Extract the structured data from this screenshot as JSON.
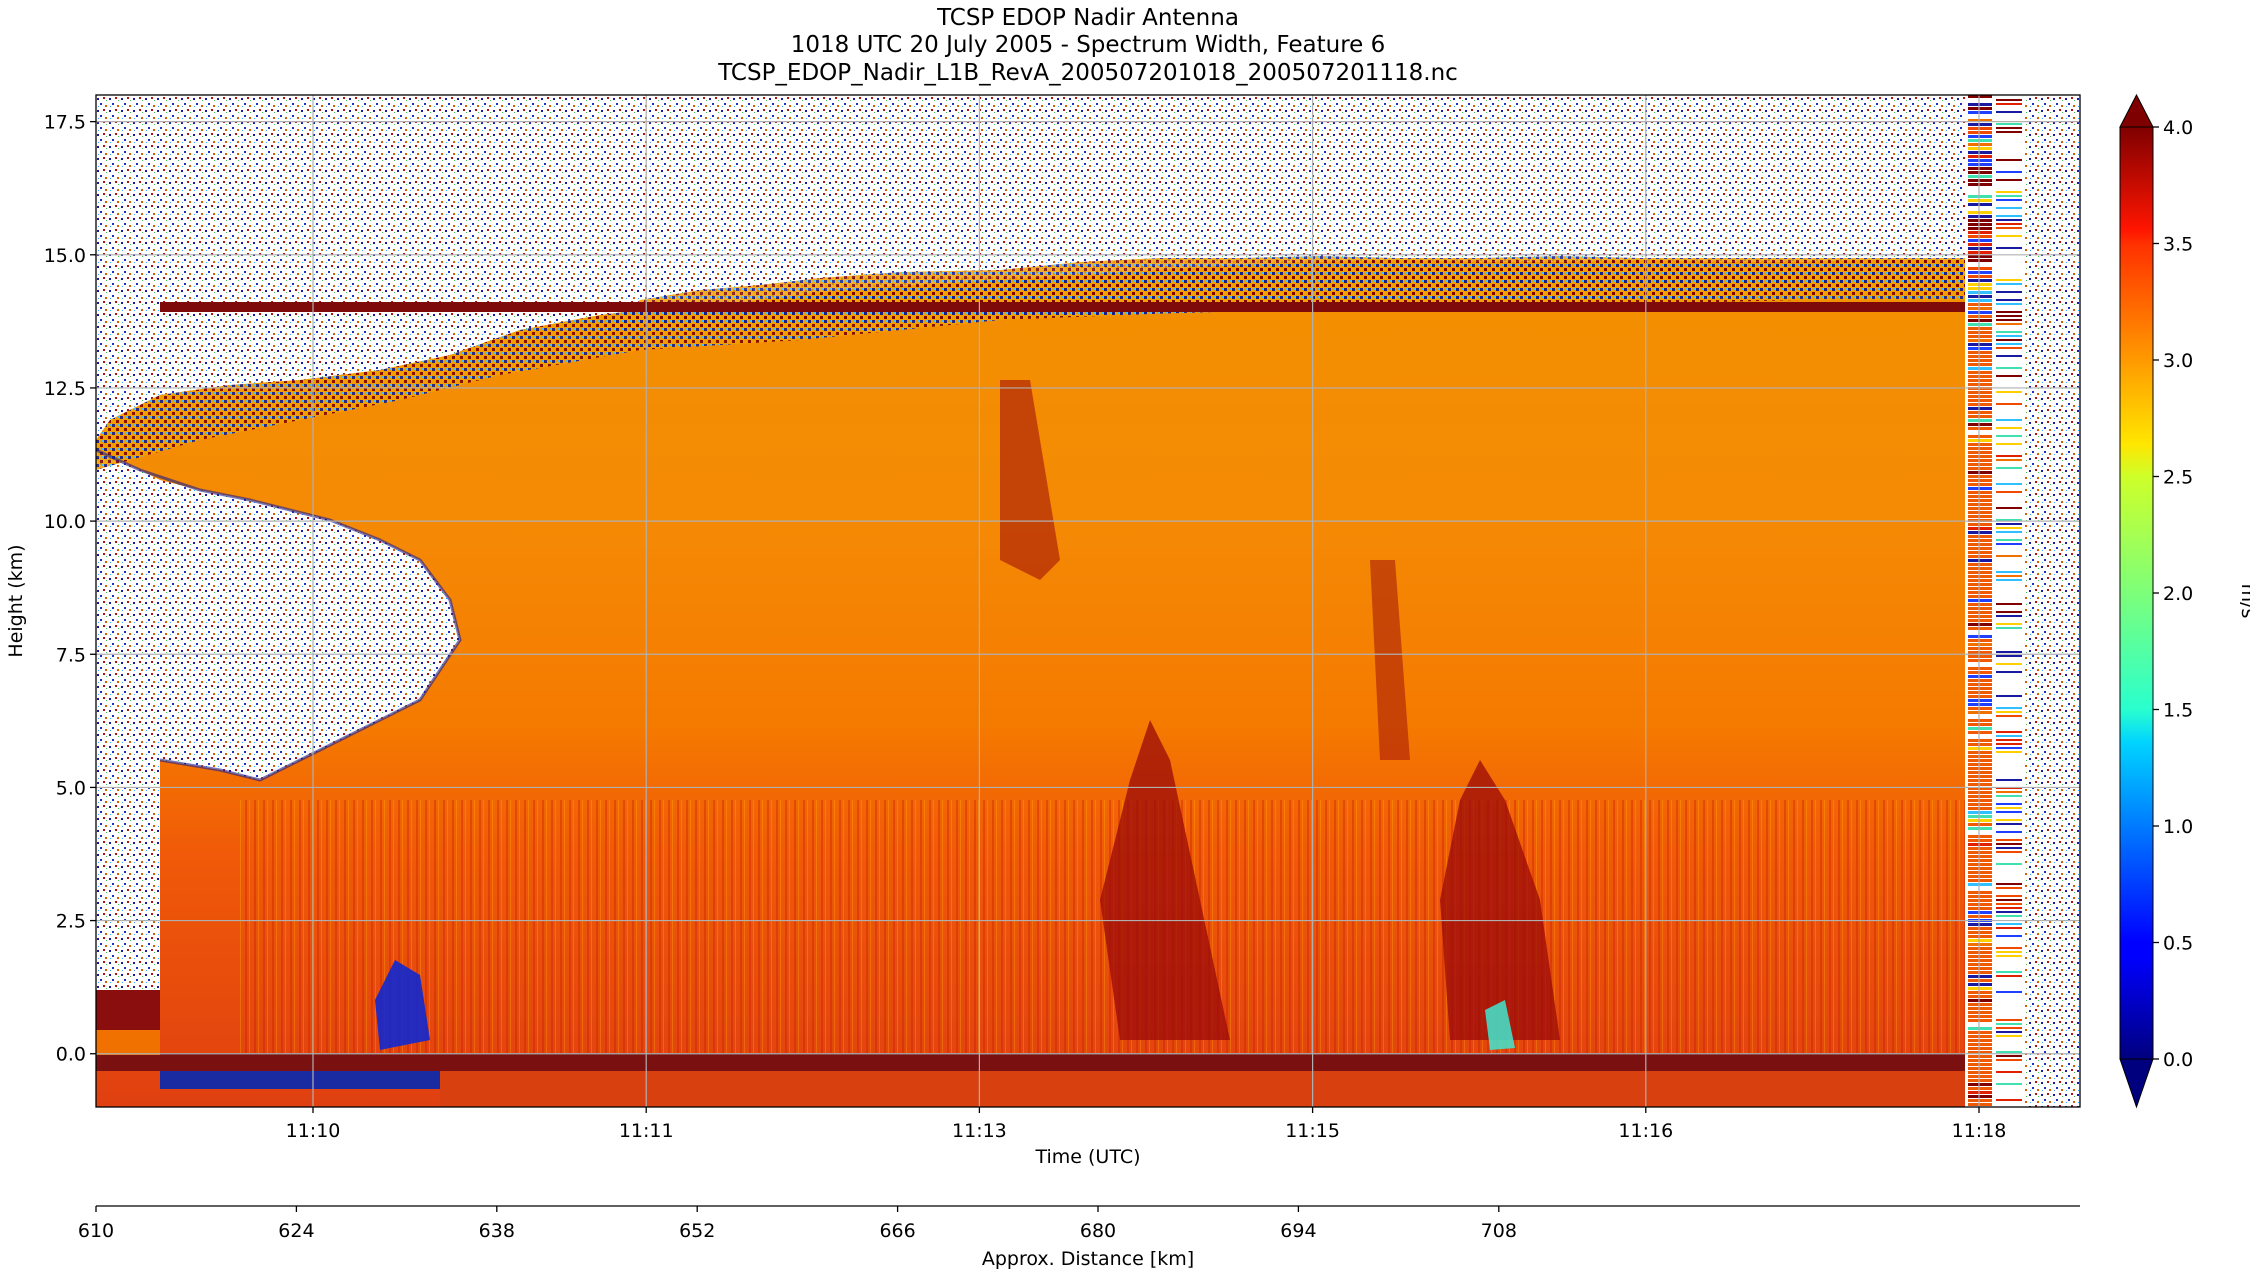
{
  "chart_data": {
    "type": "heatmap",
    "title_lines": [
      "TCSP EDOP Nadir Antenna",
      "1018 UTC 20 July 2005 - Spectrum Width, Feature 6",
      "TCSP_EDOP_Nadir_L1B_RevA_200507201018_200507201118.nc"
    ],
    "xlabel": "Time (UTC)",
    "ylabel": "Height (km)",
    "x_ticks": [
      "11:10",
      "11:11",
      "11:13",
      "11:15",
      "11:16",
      "11:18"
    ],
    "y_ticks": [
      "0.0",
      "2.5",
      "5.0",
      "7.5",
      "10.0",
      "12.5",
      "15.0",
      "17.5"
    ],
    "ylim": [
      -1.0,
      18.0
    ],
    "grid": true,
    "colorbar": {
      "label": "m/s",
      "range": [
        0.0,
        4.0
      ],
      "ticks": [
        "0.0",
        "0.5",
        "1.0",
        "1.5",
        "2.0",
        "2.5",
        "3.0",
        "3.5",
        "4.0"
      ],
      "extend": "both",
      "colormap": "jet"
    },
    "distance_axis": {
      "label": "Approx. Distance [km]",
      "ticks": [
        "610",
        "624",
        "638",
        "652",
        "666",
        "680",
        "694",
        "708"
      ]
    },
    "features": {
      "cloud_top_km": 13.8,
      "aircraft_line_km": 13.9,
      "surface_band_km": -0.2,
      "melting_layer_km": 4.8,
      "dominant_value_ms": 3.3,
      "core_value_ms": 4.0
    }
  }
}
